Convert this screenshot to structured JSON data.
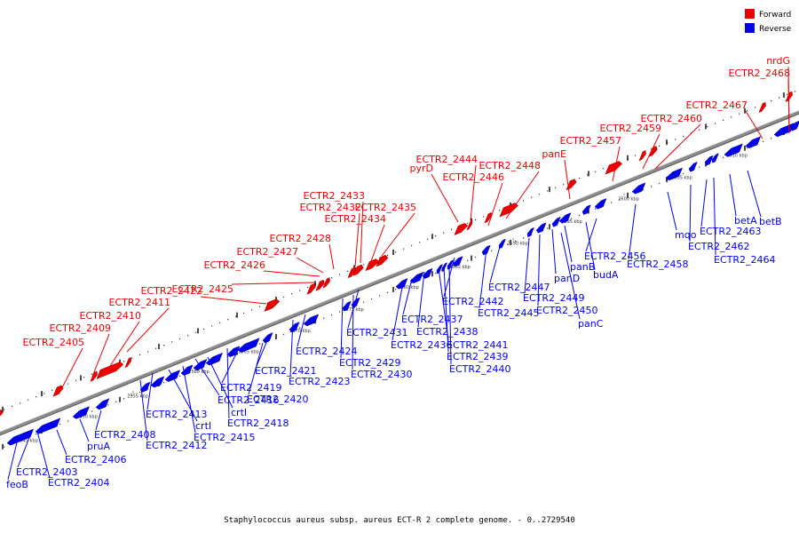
{
  "title": "Staphylococcus aureus subsp. aureus ECT-R 2 complete genome. - 0..2729540",
  "legend": [
    {
      "label": "Forward",
      "color": "#ee0000"
    },
    {
      "label": "Reverse",
      "color": "#0000ee"
    }
  ],
  "colors": {
    "forward": "#ee0000",
    "reverse": "#0000ee",
    "backbone": "#8c8c8c"
  },
  "ticks": [
    "2545 kbp",
    "2550 kbp",
    "2555 kbp",
    "2560 kbp",
    "2565 kbp",
    "2570 kbp",
    "2575 kbp",
    "2580 kbp",
    "2585 kbp",
    "2590 kbp",
    "2595 kbp",
    "2600 kbp",
    "2605 kbp",
    "2610 kbp"
  ],
  "forward_labels": [
    "ECTR2_2405",
    "ECTR2_2409",
    "ECTR2_2410",
    "ECTR2_2411",
    "ECTR2_2422",
    "ECTR2_2425",
    "ECTR2_2426",
    "ECTR2_2427",
    "ECTR2_2428",
    "ECTR2_2432",
    "ECTR2_2433",
    "ECTR2_2434",
    "ECTR2_2435",
    "pyrD",
    "ECTR2_2444",
    "ECTR2_2446",
    "ECTR2_2448",
    "panE",
    "ECTR2_2457",
    "ECTR2_2459",
    "ECTR2_2460",
    "ECTR2_2467",
    "nrdG",
    "ECTR2_2468"
  ],
  "reverse_labels": [
    "feoB",
    "ECTR2_2403",
    "ECTR2_2404",
    "ECTR2_2406",
    "pruA",
    "ECTR2_2408",
    "ECTR2_2412",
    "ECTR2_2413",
    "crtI",
    "ECTR2_2415",
    "ECTR2_2416",
    "crtI",
    "ECTR2_2418",
    "ECTR2_2419",
    "ECTR2_2420",
    "ECTR2_2421",
    "ECTR2_2423",
    "ECTR2_2424",
    "ECTR2_2429",
    "ECTR2_2430",
    "ECTR2_2431",
    "ECTR2_2436",
    "ECTR2_2437",
    "ECTR2_2438",
    "ECTR2_2441",
    "ECTR2_2439",
    "ECTR2_2440",
    "ECTR2_2442",
    "ECTR2_2445",
    "ECTR2_2447",
    "ECTR2_2449",
    "ECTR2_2450",
    "panD",
    "panB",
    "panC",
    "budA",
    "ECTR2_2456",
    "ECTR2_2458",
    "mqo",
    "ECTR2_2462",
    "ECTR2_2463",
    "ECTR2_2464",
    "betA",
    "betB"
  ]
}
